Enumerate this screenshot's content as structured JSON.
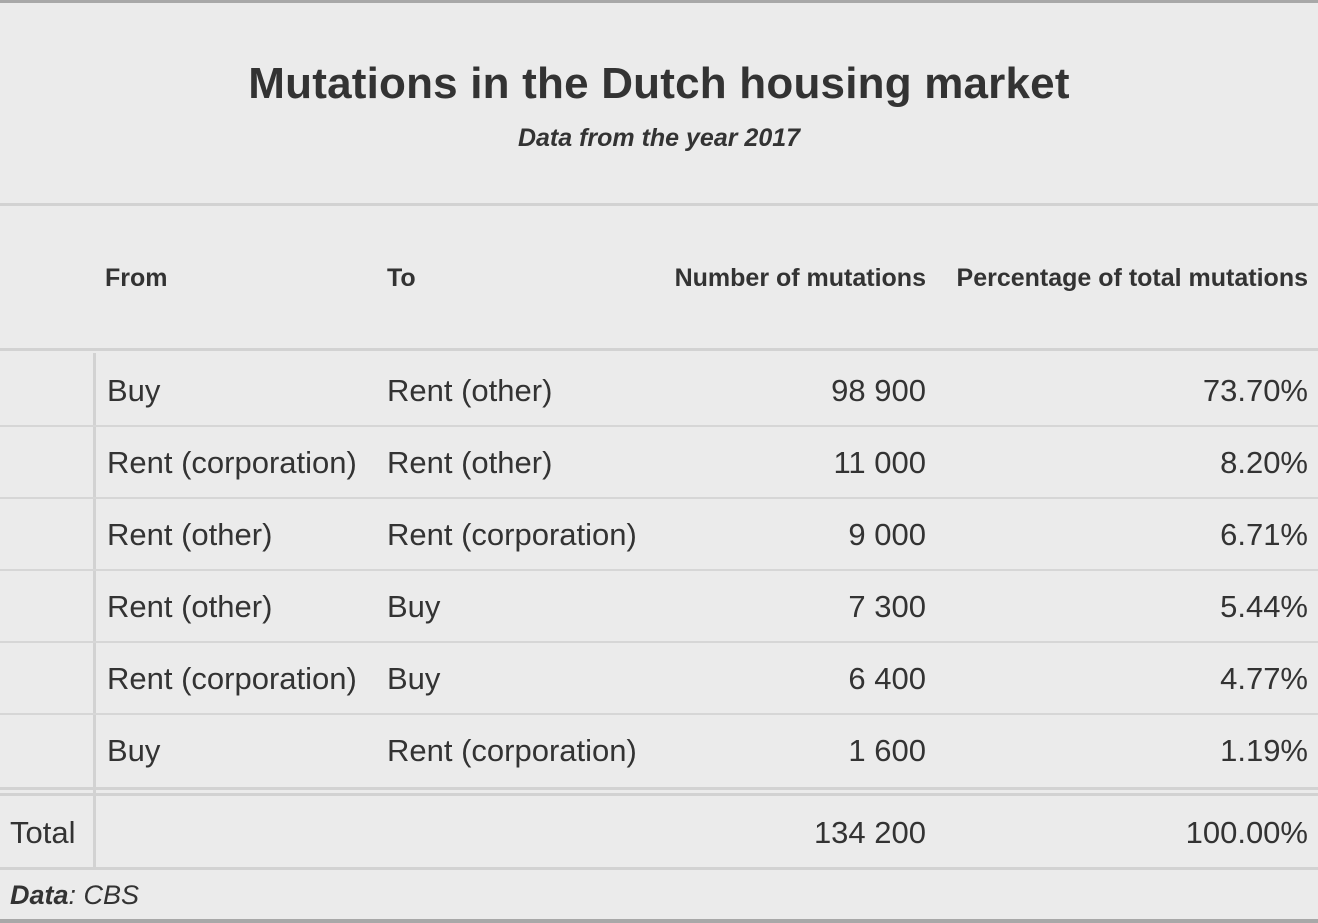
{
  "chart_data": {
    "type": "table",
    "title": "Mutations in the Dutch housing market",
    "subtitle": "Data from the year 2017",
    "columns": [
      "From",
      "To",
      "Number of mutations",
      "Percentage of total mutations"
    ],
    "rows": [
      {
        "from": "Buy",
        "to": "Rent (other)",
        "count": "98 900",
        "pct": "73.70%"
      },
      {
        "from": "Rent (corporation)",
        "to": "Rent (other)",
        "count": "11 000",
        "pct": "8.20%"
      },
      {
        "from": "Rent (other)",
        "to": "Rent (corporation)",
        "count": "9 000",
        "pct": "6.71%"
      },
      {
        "from": "Rent (other)",
        "to": "Buy",
        "count": "7 300",
        "pct": "5.44%"
      },
      {
        "from": "Rent (corporation)",
        "to": "Buy",
        "count": "6 400",
        "pct": "4.77%"
      },
      {
        "from": "Buy",
        "to": "Rent (corporation)",
        "count": "1 600",
        "pct": "1.19%"
      }
    ],
    "total": {
      "label": "Total",
      "count": "134 200",
      "pct": "100.00%"
    },
    "source_label": "Data",
    "source": ": CBS"
  }
}
